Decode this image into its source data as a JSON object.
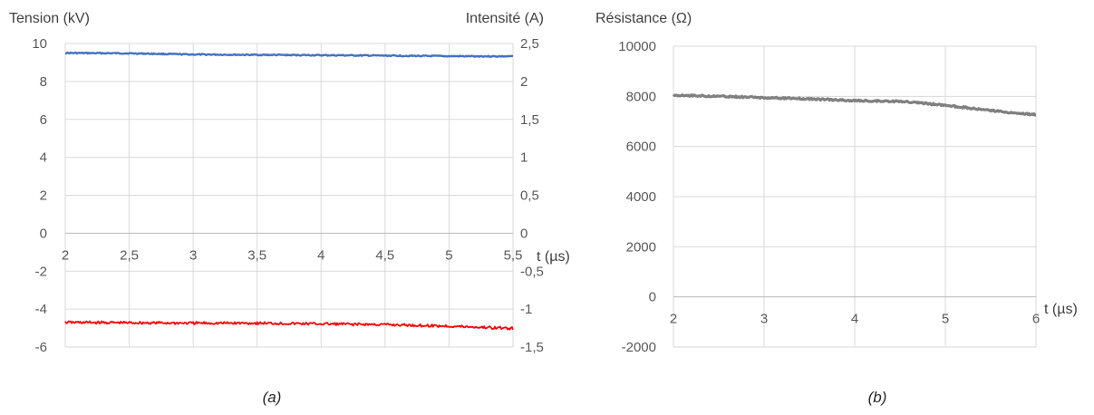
{
  "chart_data": [
    {
      "type": "line",
      "caption": "(a)",
      "ylabel": "Tension (kV)",
      "y2label": "Intensité (A)",
      "xlabel": "t (µs)",
      "xlim": [
        2,
        5.5
      ],
      "ylim": [
        -6,
        10
      ],
      "y2lim": [
        -1.5,
        2.5
      ],
      "xticks": [
        "2",
        "2,5",
        "3",
        "3,5",
        "4",
        "4,5",
        "5",
        "5,5"
      ],
      "yticks": [
        "-6",
        "-4",
        "-2",
        "0",
        "2",
        "4",
        "6",
        "8",
        "10"
      ],
      "y2ticks": [
        "-1,5",
        "-1",
        "-0,5",
        "0",
        "0,5",
        "1",
        "1,5",
        "2",
        "2,5"
      ],
      "grid": true,
      "series": [
        {
          "axis": "left",
          "color": "#4472C4",
          "x": [
            2,
            2.5,
            3,
            3.5,
            4,
            4.5,
            5,
            5.5
          ],
          "y": [
            9.5,
            9.48,
            9.42,
            9.4,
            9.38,
            9.36,
            9.33,
            9.32
          ]
        },
        {
          "axis": "right",
          "color": "#FF0000",
          "x": [
            2,
            2.5,
            3,
            3.5,
            4,
            4.5,
            5,
            5.5
          ],
          "y": [
            -1.175,
            -1.18,
            -1.185,
            -1.185,
            -1.195,
            -1.205,
            -1.225,
            -1.255
          ]
        }
      ]
    },
    {
      "type": "line",
      "caption": "(b)",
      "ylabel": "Résistance (Ω)",
      "xlabel": "t (µs)",
      "xlim": [
        2,
        6
      ],
      "ylim": [
        -2000,
        10000
      ],
      "xticks": [
        "2",
        "3",
        "4",
        "5",
        "6"
      ],
      "yticks": [
        "-2000",
        "0",
        "2000",
        "4000",
        "6000",
        "8000",
        "10000"
      ],
      "grid": true,
      "series": [
        {
          "axis": "left",
          "color": "#808080",
          "x": [
            2,
            2.5,
            3,
            3.5,
            4,
            4.5,
            5,
            5.5,
            6
          ],
          "y": [
            8050,
            8000,
            7950,
            7900,
            7830,
            7800,
            7650,
            7430,
            7270
          ]
        }
      ]
    }
  ]
}
